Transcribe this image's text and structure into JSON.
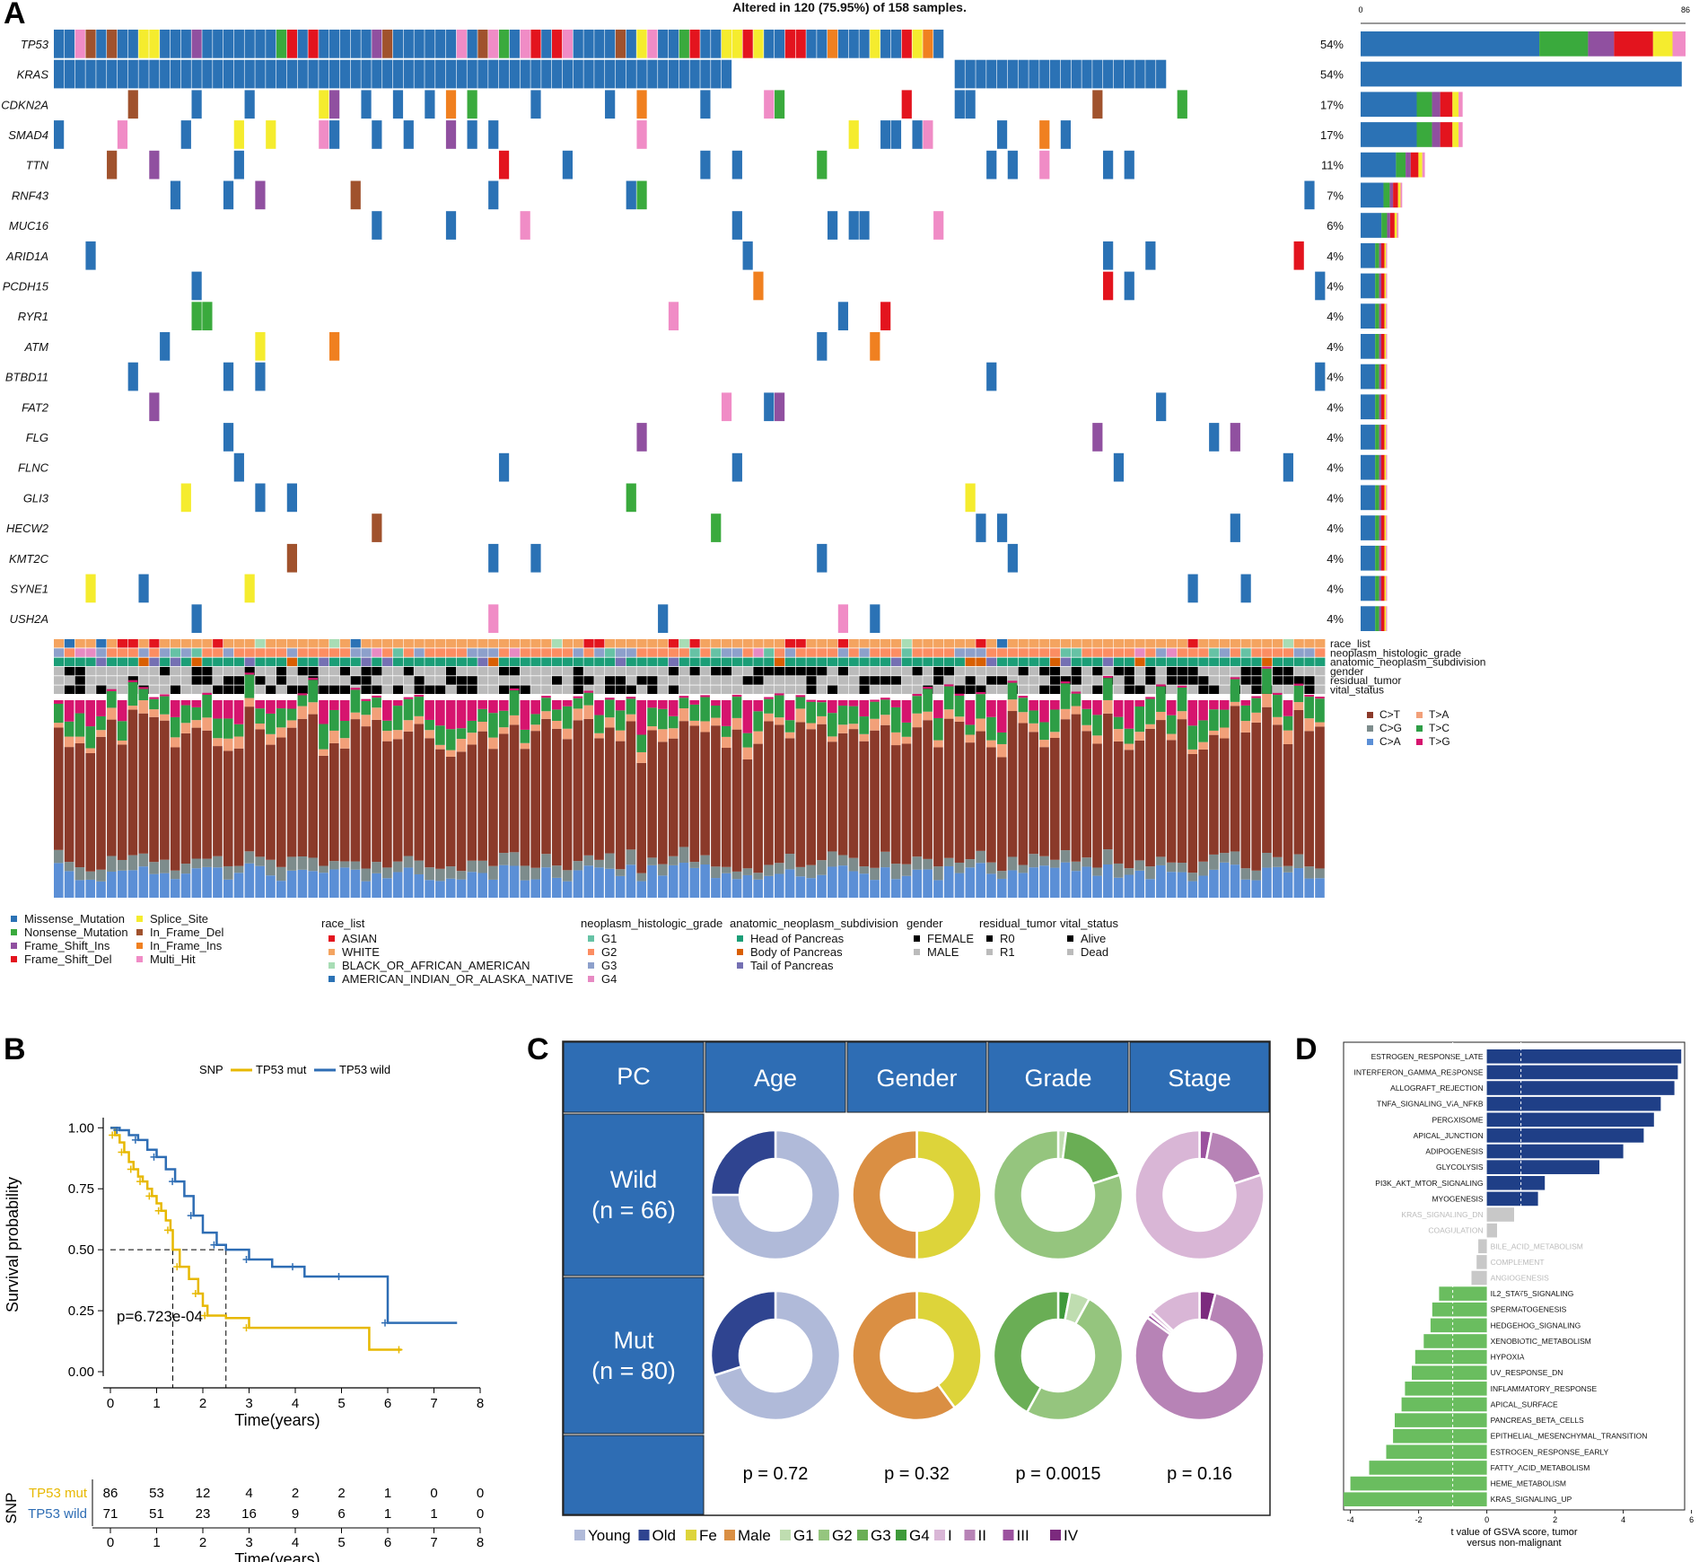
{
  "panels": {
    "a": "A",
    "b": "B",
    "c": "C",
    "d": "D"
  },
  "chart_data": [
    {
      "type": "heatmap",
      "id": "oncoplot",
      "title": "Altered in 120 (75.95%) of 158 samples.",
      "genes": [
        "TP53",
        "KRAS",
        "CDKN2A",
        "SMAD4",
        "TTN",
        "RNF43",
        "MUC16",
        "ARID1A",
        "PCDH15",
        "RYR1",
        "ATM",
        "BTBD11",
        "FAT2",
        "FLG",
        "FLNC",
        "GLI3",
        "HECW2",
        "KMT2C",
        "SYNE1",
        "USH2A"
      ],
      "percent": [
        "54%",
        "54%",
        "17%",
        "17%",
        "11%",
        "7%",
        "6%",
        "4%",
        "4%",
        "4%",
        "4%",
        "4%",
        "4%",
        "4%",
        "4%",
        "4%",
        "4%",
        "4%",
        "4%",
        "4%"
      ],
      "counts": [
        86,
        85,
        27,
        27,
        17,
        11,
        10,
        7,
        7,
        7,
        7,
        7,
        7,
        7,
        7,
        7,
        7,
        7,
        7,
        7
      ],
      "topbar_axis": [
        "0",
        "86"
      ],
      "annotation_tracks": [
        "race_list",
        "neoplasm_histologic_grade",
        "anatomic_neoplasm_subdivision",
        "gender",
        "residual_tumor",
        "vital_status"
      ],
      "ti_tv_legend": [
        {
          "label": "C>T",
          "color": "#8B3A2A"
        },
        {
          "label": "T>A",
          "color": "#F2A079"
        },
        {
          "label": "C>G",
          "color": "#7D8C8C"
        },
        {
          "label": "T>C",
          "color": "#2E9E46"
        },
        {
          "label": "C>A",
          "color": "#5B8FD6"
        },
        {
          "label": "T>G",
          "color": "#D6146E"
        }
      ],
      "variant_legend": [
        {
          "label": "Missense_Mutation",
          "color": "#2B72B5"
        },
        {
          "label": "Splice_Site",
          "color": "#F5EC2E"
        },
        {
          "label": "Nonsense_Mutation",
          "color": "#3AAA3D"
        },
        {
          "label": "In_Frame_Del",
          "color": "#A0522D"
        },
        {
          "label": "Frame_Shift_Ins",
          "color": "#9050A0"
        },
        {
          "label": "In_Frame_Ins",
          "color": "#F08020"
        },
        {
          "label": "Frame_Shift_Del",
          "color": "#E3141E"
        },
        {
          "label": "Multi_Hit",
          "color": "#F08CC6"
        }
      ],
      "clinical_legends": [
        {
          "title": "race_list",
          "items": [
            {
              "label": "ASIAN",
              "color": "#E3141E"
            },
            {
              "label": "WHITE",
              "color": "#F4A460"
            },
            {
              "label": "BLACK_OR_AFRICAN_AMERICAN",
              "color": "#A8DDB5"
            },
            {
              "label": "AMERICAN_INDIAN_OR_ALASKA_NATIVE",
              "color": "#2B72B5"
            }
          ]
        },
        {
          "title": "neoplasm_histologic_grade",
          "items": [
            {
              "label": "G1",
              "color": "#66C2A5"
            },
            {
              "label": "G2",
              "color": "#FC8D62"
            },
            {
              "label": "G3",
              "color": "#8DA0CB"
            },
            {
              "label": "G4",
              "color": "#E78AC3"
            }
          ]
        },
        {
          "title": "anatomic_neoplasm_subdivision",
          "items": [
            {
              "label": "Head of Pancreas",
              "color": "#1B9E77"
            },
            {
              "label": "Body of Pancreas",
              "color": "#D95F02"
            },
            {
              "label": "Tail of Pancreas",
              "color": "#7570B3"
            }
          ]
        },
        {
          "title": "gender",
          "items": [
            {
              "label": "FEMALE",
              "color": "#000000"
            },
            {
              "label": "MALE",
              "color": "#BBBBBB"
            }
          ]
        },
        {
          "title": "residual_tumor",
          "items": [
            {
              "label": "R0",
              "color": "#000000"
            },
            {
              "label": "R1",
              "color": "#BBBBBB"
            }
          ]
        },
        {
          "title": "vital_status",
          "items": [
            {
              "label": "Alive",
              "color": "#000000"
            },
            {
              "label": "Dead",
              "color": "#BBBBBB"
            }
          ]
        }
      ]
    },
    {
      "type": "line",
      "id": "km",
      "xlabel": "Time(years)",
      "ylabel": "Survival probability",
      "legend_title": "SNP",
      "xlim": [
        0,
        8
      ],
      "ylim": [
        0,
        1
      ],
      "x_ticks": [
        "0",
        "1",
        "2",
        "3",
        "4",
        "5",
        "6",
        "7",
        "8"
      ],
      "y_ticks": [
        "0.00",
        "0.25",
        "0.50",
        "0.75",
        "1.00"
      ],
      "annotation": "p=6.723e-04",
      "series": [
        {
          "name": "TP53 mut",
          "color": "#E7B800",
          "x": [
            0,
            0.1,
            0.2,
            0.3,
            0.4,
            0.5,
            0.6,
            0.7,
            0.8,
            0.9,
            1.0,
            1.1,
            1.2,
            1.3,
            1.35,
            1.5,
            1.7,
            1.9,
            2.0,
            2.1,
            2.5,
            3.0,
            5.6,
            6.3
          ],
          "y": [
            1.0,
            0.97,
            0.94,
            0.9,
            0.86,
            0.83,
            0.8,
            0.78,
            0.75,
            0.72,
            0.69,
            0.66,
            0.62,
            0.58,
            0.5,
            0.43,
            0.38,
            0.32,
            0.27,
            0.23,
            0.22,
            0.18,
            0.09,
            0.09
          ]
        },
        {
          "name": "TP53 wild",
          "color": "#2E6DB4",
          "x": [
            0,
            0.2,
            0.4,
            0.6,
            0.8,
            1.0,
            1.2,
            1.4,
            1.6,
            1.8,
            2.0,
            2.3,
            2.5,
            3.0,
            3.5,
            4.0,
            4.2,
            5.0,
            5.8,
            6.0,
            7.5
          ],
          "y": [
            1.0,
            0.99,
            0.97,
            0.95,
            0.91,
            0.88,
            0.83,
            0.78,
            0.72,
            0.64,
            0.57,
            0.52,
            0.5,
            0.46,
            0.43,
            0.43,
            0.39,
            0.39,
            0.39,
            0.2,
            0.2
          ]
        }
      ],
      "medians": [
        1.35,
        2.5
      ],
      "risk_table": {
        "title": "SNP",
        "xlabel": "Time(years)",
        "rows": [
          {
            "name": "TP53 mut",
            "color": "#E7B800",
            "values": [
              "86",
              "53",
              "12",
              "4",
              "2",
              "2",
              "1",
              "0",
              "0"
            ]
          },
          {
            "name": "TP53 wild",
            "color": "#2E6DB4",
            "values": [
              "71",
              "51",
              "23",
              "16",
              "9",
              "6",
              "1",
              "1",
              "0"
            ]
          }
        ]
      }
    },
    {
      "type": "pie",
      "id": "donuts",
      "corner": "PC",
      "columns": [
        "Age",
        "Gender",
        "Grade",
        "Stage"
      ],
      "rows": [
        {
          "label_line1": "Wild",
          "label_line2": "(n = 66)",
          "values": [
            [
              0.75,
              0.25
            ],
            [
              0.5,
              0.5
            ],
            [
              0.02,
              0.18,
              0.8
            ],
            [
              0.03,
              0.17,
              0.8
            ]
          ]
        },
        {
          "label_line1": "Mut",
          "label_line2": "(n = 80)",
          "values": [
            [
              0.7,
              0.3
            ],
            [
              0.4,
              0.6
            ],
            [
              0.03,
              0.05,
              0.5,
              0.42
            ],
            [
              0.04,
              0.81,
              0.01,
              0.01,
              0.13
            ]
          ]
        }
      ],
      "p_values": [
        "p = 0.72",
        "p = 0.32",
        "p = 0.0015",
        "p = 0.16"
      ],
      "legend": [
        {
          "label": "Young",
          "color": "#B0BAD9"
        },
        {
          "label": "Old",
          "color": "#2F4490"
        },
        {
          "label": "Fe",
          "color": "#DDD43A"
        },
        {
          "label": "Male",
          "color": "#DA8F43"
        },
        {
          "label": "G1",
          "color": "#BFDDB0"
        },
        {
          "label": "G2",
          "color": "#95C57E"
        },
        {
          "label": "G3",
          "color": "#6AAE55"
        },
        {
          "label": "G4",
          "color": "#3E9A3A"
        },
        {
          "label": "I",
          "color": "#D9B6D6"
        },
        {
          "label": "II",
          "color": "#B783B6"
        },
        {
          "label": "III",
          "color": "#9B519E"
        },
        {
          "label": "IV",
          "color": "#7C2A7E"
        }
      ],
      "header_color": "#2E6DB4"
    },
    {
      "type": "bar",
      "id": "gsva",
      "xlabel": "t value of GSVA score, tumor",
      "xlabel2": "versus non-malignant",
      "xlim": [
        -4.2,
        5.8
      ],
      "x_ticks": [
        "-4",
        "-2",
        "0",
        "2",
        "4",
        "6"
      ],
      "x_tick_values": [
        -4,
        -2,
        0,
        2,
        4,
        6
      ],
      "threshold": 1.0,
      "categories": [
        "ESTROGEN_RESPONSE_LATE",
        "INTERFERON_GAMMA_RESPONSE",
        "ALLOGRAFT_REJECTION",
        "TNFA_SIGNALING_VIA_NFKB",
        "PEROXISOME",
        "APICAL_JUNCTION",
        "ADIPOGENESIS",
        "GLYCOLYSIS",
        "PI3K_AKT_MTOR_SIGNALING",
        "MYOGENESIS",
        "KRAS_SIGNALING_DN",
        "COAGULATION",
        "BILE_ACID_METABOLISM",
        "COMPLEMENT",
        "ANGIOGENESIS",
        "IL2_STAT5_SIGNALING",
        "SPERMATOGENESIS",
        "HEDGEHOG_SIGNALING",
        "XENOBIOTIC_METABOLISM",
        "HYPOXIA",
        "UV_RESPONSE_DN",
        "INFLAMMATORY_RESPONSE",
        "APICAL_SURFACE",
        "PANCREAS_BETA_CELLS",
        "EPITHELIAL_MESENCHYMAL_TRANSITION",
        "ESTROGEN_RESPONSE_EARLY",
        "FATTY_ACID_METABOLISM",
        "HEME_METABOLISM",
        "KRAS_SIGNALING_UP"
      ],
      "values": [
        5.7,
        5.6,
        5.5,
        5.1,
        4.9,
        4.6,
        4.0,
        3.3,
        1.7,
        1.5,
        0.8,
        0.3,
        -0.25,
        -0.3,
        -0.45,
        -1.4,
        -1.6,
        -1.65,
        -1.85,
        -2.1,
        -2.2,
        -2.4,
        -2.5,
        -2.7,
        -2.75,
        -2.95,
        -3.45,
        -4.0,
        -4.2
      ],
      "colors": {
        "pos": "#1F3F87",
        "neg": "#6ABD5F",
        "ns": "#C8C8C8"
      }
    }
  ]
}
